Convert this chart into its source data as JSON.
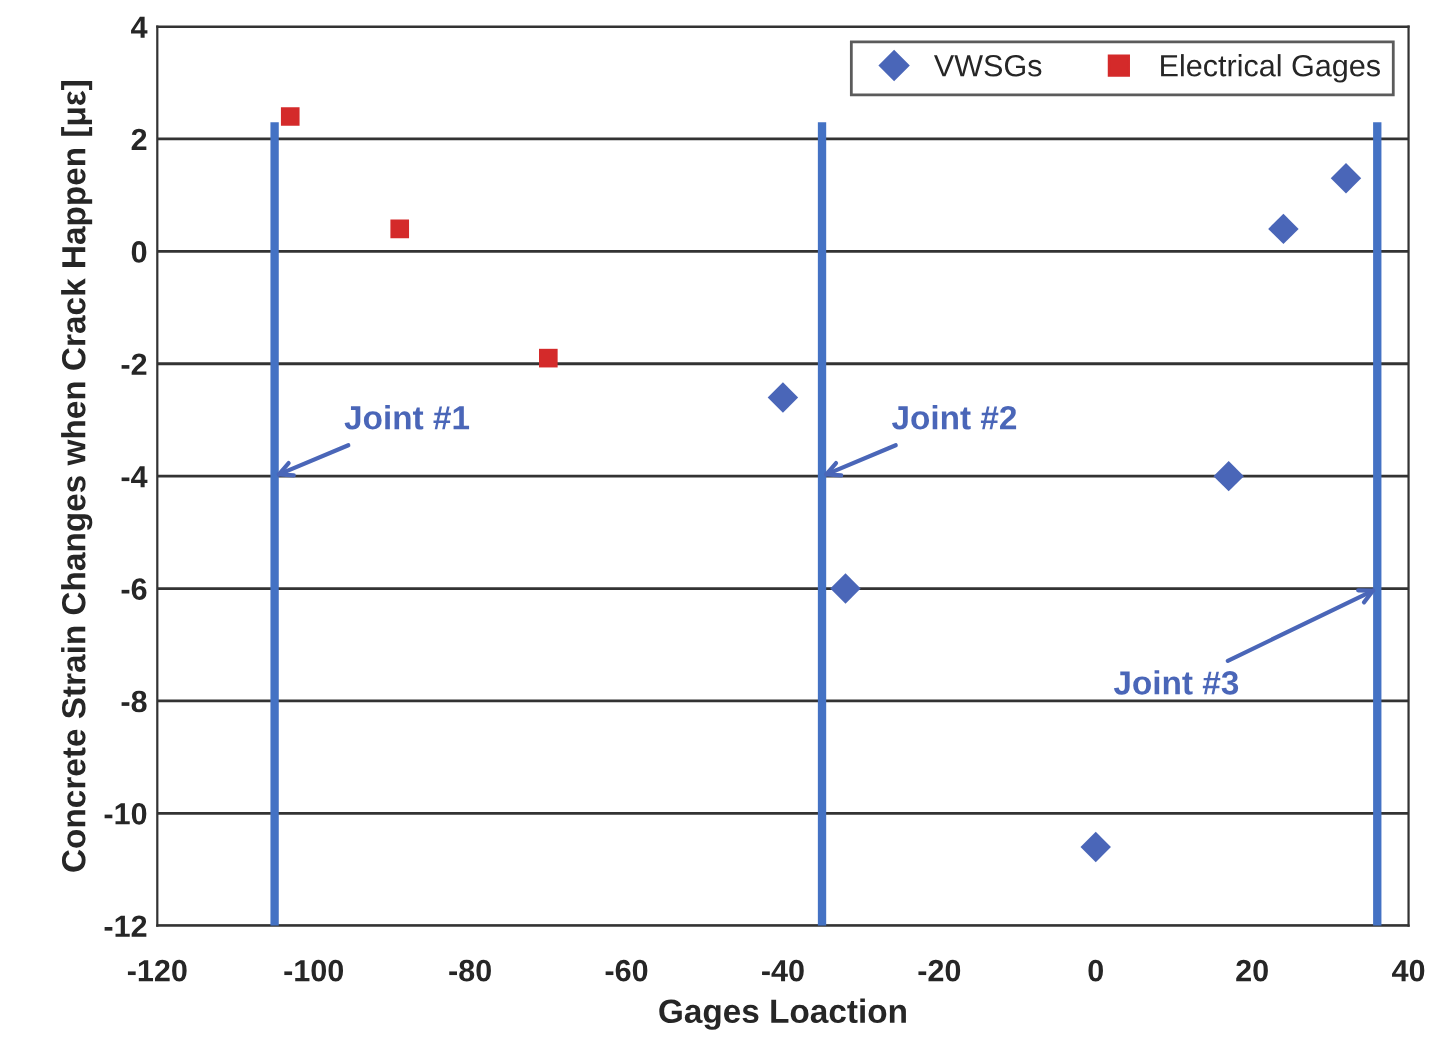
{
  "chart_data": {
    "type": "scatter",
    "xlabel": "Gages Loaction",
    "ylabel": "Concrete Strain Changes when Crack Happen [με]",
    "series": [
      {
        "name": "VWSGs",
        "color": "#4a66b8",
        "marker": "diamond",
        "x": [
          -40,
          -32,
          0,
          17,
          24,
          32
        ],
        "values": [
          -2.6,
          -6.0,
          -10.6,
          -4.0,
          0.4,
          1.3
        ]
      },
      {
        "name": "Electrical Gages",
        "color": "#d42a2a",
        "marker": "square",
        "x": [
          -103,
          -89,
          -70
        ],
        "values": [
          2.4,
          0.4,
          -1.9
        ]
      }
    ],
    "ref_lines": [
      {
        "axis": "x",
        "value": -105,
        "color": "#4472c4"
      },
      {
        "axis": "x",
        "value": -35,
        "color": "#4472c4"
      },
      {
        "axis": "x",
        "value": 36,
        "color": "#4472c4"
      }
    ],
    "annotations": [
      {
        "text": "Joint #1",
        "x": -105,
        "y": -4
      },
      {
        "text": "Joint #2",
        "x": -35,
        "y": -4
      },
      {
        "text": "Joint #3",
        "x": 36,
        "y": -6
      }
    ],
    "xlim": [
      -120,
      40
    ],
    "xticks": [
      -120,
      -100,
      -80,
      -60,
      -40,
      -20,
      0,
      20,
      40
    ],
    "ylim": [
      -12,
      4
    ],
    "yticks": [
      -12,
      -10,
      -8,
      -6,
      -4,
      -2,
      0,
      2,
      4
    ],
    "grid": "y",
    "legend": "top right"
  }
}
